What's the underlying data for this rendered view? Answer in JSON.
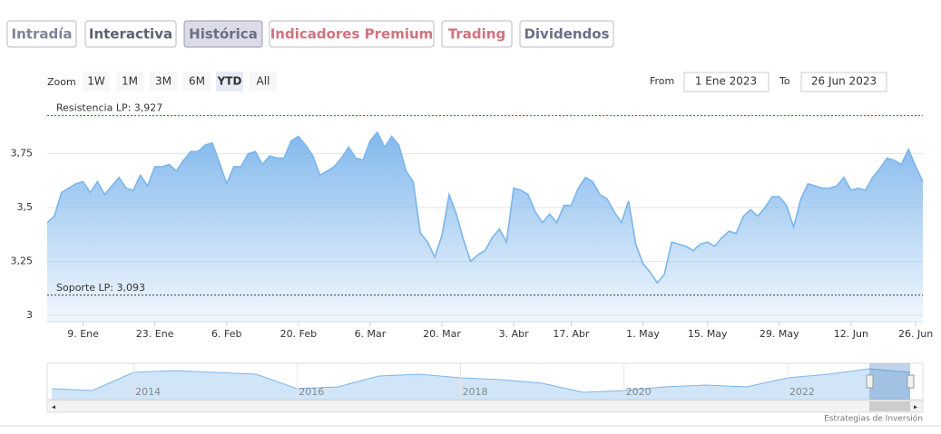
{
  "toolbar": {
    "tabs": [
      {
        "label": "Intradía",
        "color": "#7d8597"
      },
      {
        "label": "Interactiva",
        "color": "#5d6270"
      },
      {
        "label": "Histórica",
        "color": "#6b6f86"
      },
      {
        "label": "Indicadores Premium",
        "color": "#d0737f"
      },
      {
        "label": "Trading",
        "color": "#d0737f"
      },
      {
        "label": "Dividendos",
        "color": "#6b6f86"
      }
    ],
    "active_tab": "Histórica",
    "zoom_label": "Zoom",
    "zoom_buttons": [
      "1W",
      "1M",
      "3M",
      "6M",
      "YTD",
      "All"
    ],
    "active_zoom": "YTD",
    "from_label": "From",
    "from_value": "1 Ene 2023",
    "to_label": "To",
    "to_value": "26 Jun 2023"
  },
  "chart_data": {
    "type": "area",
    "series": [
      {
        "color": "#7cb5ec",
        "values": [
          3.43,
          3.46,
          3.57,
          3.59,
          3.61,
          3.62,
          3.57,
          3.62,
          3.56,
          3.6,
          3.64,
          3.59,
          3.58,
          3.65,
          3.6,
          3.69,
          3.69,
          3.7,
          3.67,
          3.72,
          3.76,
          3.76,
          3.79,
          3.8,
          3.71,
          3.61,
          3.69,
          3.69,
          3.75,
          3.76,
          3.7,
          3.74,
          3.73,
          3.73,
          3.81,
          3.83,
          3.79,
          3.74,
          3.65,
          3.67,
          3.69,
          3.73,
          3.78,
          3.73,
          3.72,
          3.81,
          3.85,
          3.78,
          3.83,
          3.79,
          3.67,
          3.62,
          3.38,
          3.34,
          3.27,
          3.37,
          3.56,
          3.47,
          3.35,
          3.25,
          3.28,
          3.3,
          3.36,
          3.4,
          3.34,
          3.59,
          3.58,
          3.56,
          3.48,
          3.43,
          3.47,
          3.43,
          3.51,
          3.51,
          3.59,
          3.64,
          3.62,
          3.56,
          3.54,
          3.48,
          3.43,
          3.53,
          3.33,
          3.24,
          3.2,
          3.15,
          3.19,
          3.34,
          3.33,
          3.32,
          3.3,
          3.33,
          3.34,
          3.32,
          3.36,
          3.39,
          3.38,
          3.46,
          3.49,
          3.46,
          3.5,
          3.55,
          3.55,
          3.51,
          3.41,
          3.54,
          3.61,
          3.6,
          3.59,
          3.59,
          3.6,
          3.64,
          3.58,
          3.59,
          3.58,
          3.64,
          3.68,
          3.73,
          3.72,
          3.7,
          3.77,
          3.69,
          3.62
        ]
      }
    ],
    "xticks": [
      {
        "value": 5,
        "label": "9. Ene"
      },
      {
        "value": 15,
        "label": "23. Ene"
      },
      {
        "value": 25,
        "label": "6. Feb"
      },
      {
        "value": 35,
        "label": "20. Feb"
      },
      {
        "value": 45,
        "label": "6. Mar"
      },
      {
        "value": 55,
        "label": "20. Mar"
      },
      {
        "value": 65,
        "label": "3. Abr"
      },
      {
        "value": 73,
        "label": "17. Abr"
      },
      {
        "value": 83,
        "label": "1. May"
      },
      {
        "value": 92,
        "label": "15. May"
      },
      {
        "value": 102,
        "label": "29. May"
      },
      {
        "value": 112,
        "label": "12. Jun"
      },
      {
        "value": 121,
        "label": "26. Jun"
      }
    ],
    "ylim": [
      2.97,
      3.98
    ],
    "yticks": [
      3,
      {
        "value": 3.25,
        "label": "3,25"
      },
      {
        "value": 3.5,
        "label": "3,5"
      },
      {
        "value": 3.75,
        "label": "3,75"
      }
    ],
    "grid": true,
    "plot_lines": [
      {
        "value": 3.927,
        "label": "Resistencia LP: 3,927",
        "color": "#2e6b3a"
      },
      {
        "value": 3.093,
        "label": "Soporte LP: 3,093",
        "color": "#333333"
      }
    ],
    "navigator": {
      "x": [
        2013,
        2013.5,
        2014,
        2014.5,
        2015,
        2015.5,
        2016,
        2016.5,
        2017,
        2017.5,
        2018,
        2018.5,
        2019,
        2019.5,
        2020,
        2020.5,
        2021,
        2021.5,
        2022,
        2022.5,
        2023,
        2023.5
      ],
      "values": [
        3.3,
        3.25,
        3.75,
        3.8,
        3.75,
        3.7,
        3.3,
        3.35,
        3.65,
        3.7,
        3.6,
        3.55,
        3.45,
        3.2,
        3.25,
        3.35,
        3.4,
        3.35,
        3.6,
        3.7,
        3.85,
        3.75
      ],
      "xlim": [
        2013,
        2023.5
      ],
      "ylim": [
        3.0,
        4.0
      ],
      "xticks": [
        2014,
        2016,
        2018,
        2020,
        2022
      ]
    },
    "credits": "Estrategias de Inversión"
  }
}
